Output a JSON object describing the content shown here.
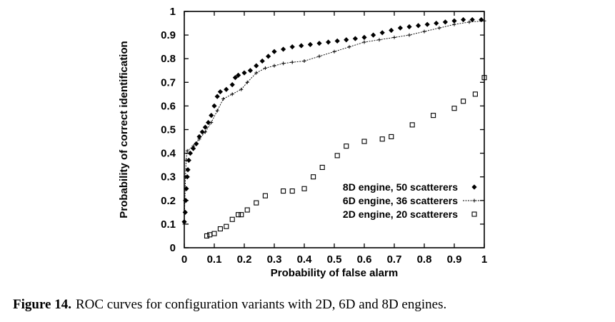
{
  "caption": {
    "label": "Figure 14.",
    "text": "ROC curves for configuration variants with 2D, 6D and 8D engines."
  },
  "chart_data": {
    "type": "scatter",
    "title": "",
    "xlabel": "Probability of false alarm",
    "ylabel": "Probability of correct identification",
    "xlim": [
      0,
      1
    ],
    "ylim": [
      0,
      1
    ],
    "xticks": [
      "0",
      "0.1",
      "0.2",
      "0.3",
      "0.4",
      "0.5",
      "0.6",
      "0.7",
      "0.8",
      "0.9",
      "1"
    ],
    "yticks": [
      "0",
      "0.1",
      "0.2",
      "0.3",
      "0.4",
      "0.5",
      "0.6",
      "0.7",
      "0.8",
      "0.9",
      "1"
    ],
    "grid": false,
    "legend_position": "lower-right",
    "series": [
      {
        "name": "8D engine, 50 scatterers",
        "marker": "diamond",
        "points": [
          [
            0.0,
            0.11
          ],
          [
            0.003,
            0.15
          ],
          [
            0.005,
            0.2
          ],
          [
            0.007,
            0.25
          ],
          [
            0.01,
            0.3
          ],
          [
            0.012,
            0.33
          ],
          [
            0.015,
            0.37
          ],
          [
            0.02,
            0.4
          ],
          [
            0.03,
            0.42
          ],
          [
            0.04,
            0.44
          ],
          [
            0.05,
            0.47
          ],
          [
            0.06,
            0.49
          ],
          [
            0.07,
            0.51
          ],
          [
            0.08,
            0.53
          ],
          [
            0.09,
            0.56
          ],
          [
            0.1,
            0.6
          ],
          [
            0.11,
            0.64
          ],
          [
            0.12,
            0.66
          ],
          [
            0.14,
            0.67
          ],
          [
            0.16,
            0.69
          ],
          [
            0.17,
            0.72
          ],
          [
            0.18,
            0.73
          ],
          [
            0.2,
            0.74
          ],
          [
            0.22,
            0.75
          ],
          [
            0.24,
            0.77
          ],
          [
            0.26,
            0.79
          ],
          [
            0.28,
            0.81
          ],
          [
            0.3,
            0.83
          ],
          [
            0.33,
            0.84
          ],
          [
            0.36,
            0.85
          ],
          [
            0.39,
            0.855
          ],
          [
            0.42,
            0.86
          ],
          [
            0.45,
            0.865
          ],
          [
            0.48,
            0.87
          ],
          [
            0.51,
            0.875
          ],
          [
            0.54,
            0.88
          ],
          [
            0.57,
            0.885
          ],
          [
            0.6,
            0.89
          ],
          [
            0.63,
            0.9
          ],
          [
            0.66,
            0.91
          ],
          [
            0.69,
            0.92
          ],
          [
            0.72,
            0.93
          ],
          [
            0.75,
            0.935
          ],
          [
            0.78,
            0.94
          ],
          [
            0.81,
            0.945
          ],
          [
            0.84,
            0.95
          ],
          [
            0.87,
            0.955
          ],
          [
            0.9,
            0.96
          ],
          [
            0.93,
            0.965
          ],
          [
            0.96,
            0.965
          ],
          [
            0.99,
            0.965
          ]
        ]
      },
      {
        "name": "6D engine, 36 scatterers",
        "marker": "plus",
        "points": [
          [
            0.0,
            0.1
          ],
          [
            0.002,
            0.2
          ],
          [
            0.004,
            0.3
          ],
          [
            0.006,
            0.37
          ],
          [
            0.01,
            0.41
          ],
          [
            0.03,
            0.43
          ],
          [
            0.05,
            0.46
          ],
          [
            0.07,
            0.49
          ],
          [
            0.09,
            0.53
          ],
          [
            0.11,
            0.58
          ],
          [
            0.13,
            0.63
          ],
          [
            0.16,
            0.65
          ],
          [
            0.19,
            0.67
          ],
          [
            0.21,
            0.7
          ],
          [
            0.24,
            0.74
          ],
          [
            0.27,
            0.76
          ],
          [
            0.3,
            0.77
          ],
          [
            0.33,
            0.78
          ],
          [
            0.36,
            0.785
          ],
          [
            0.4,
            0.79
          ],
          [
            0.45,
            0.81
          ],
          [
            0.5,
            0.83
          ],
          [
            0.55,
            0.85
          ],
          [
            0.6,
            0.87
          ],
          [
            0.65,
            0.88
          ],
          [
            0.7,
            0.89
          ],
          [
            0.75,
            0.9
          ],
          [
            0.8,
            0.915
          ],
          [
            0.85,
            0.93
          ],
          [
            0.9,
            0.945
          ],
          [
            0.95,
            0.955
          ],
          [
            1.0,
            0.96
          ]
        ]
      },
      {
        "name": "2D engine, 20 scatterers",
        "marker": "square",
        "points": [
          [
            0.075,
            0.05
          ],
          [
            0.085,
            0.055
          ],
          [
            0.1,
            0.06
          ],
          [
            0.12,
            0.08
          ],
          [
            0.14,
            0.09
          ],
          [
            0.16,
            0.12
          ],
          [
            0.18,
            0.14
          ],
          [
            0.19,
            0.14
          ],
          [
            0.21,
            0.16
          ],
          [
            0.24,
            0.19
          ],
          [
            0.27,
            0.22
          ],
          [
            0.33,
            0.24
          ],
          [
            0.36,
            0.24
          ],
          [
            0.4,
            0.25
          ],
          [
            0.43,
            0.3
          ],
          [
            0.46,
            0.34
          ],
          [
            0.51,
            0.39
          ],
          [
            0.54,
            0.43
          ],
          [
            0.6,
            0.45
          ],
          [
            0.66,
            0.46
          ],
          [
            0.69,
            0.47
          ],
          [
            0.76,
            0.52
          ],
          [
            0.83,
            0.56
          ],
          [
            0.9,
            0.59
          ],
          [
            0.93,
            0.62
          ],
          [
            0.97,
            0.65
          ],
          [
            1.0,
            0.72
          ]
        ]
      }
    ]
  }
}
